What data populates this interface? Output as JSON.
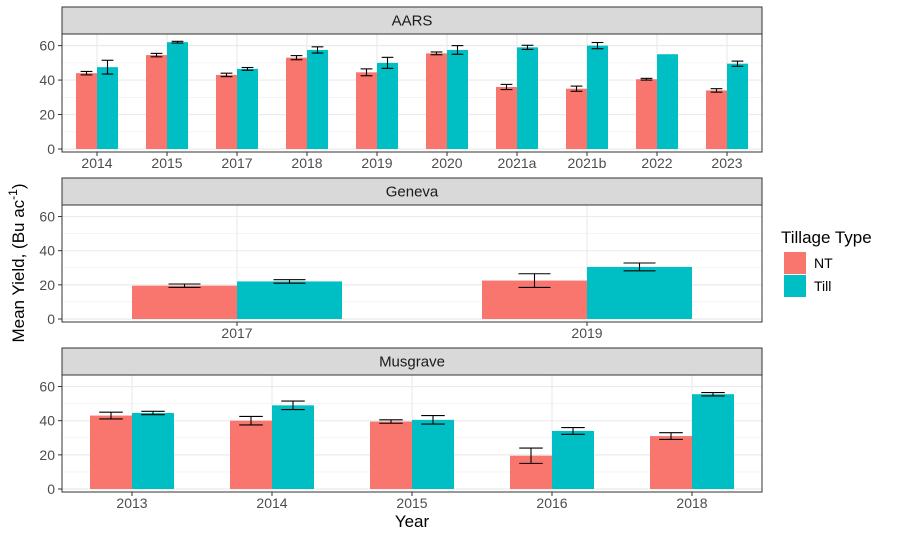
{
  "chart_data": {
    "type": "bar",
    "layout": "faceted-vertical",
    "xlabel": "Year",
    "ylabel": "Mean Yield, (Bu ac",
    "ylabel_superscript": "-1",
    "ylabel_suffix": ")",
    "ylim": [
      0,
      65
    ],
    "yticks": [
      0,
      20,
      40,
      60
    ],
    "legend": {
      "title": "Tillage Type",
      "position": "right",
      "items": [
        {
          "name": "NT",
          "color": "#F8766D"
        },
        {
          "name": "Till",
          "color": "#00BFC4"
        }
      ]
    },
    "series_colors": {
      "NT": "#F8766D",
      "Till": "#00BFC4"
    },
    "panels": [
      {
        "title": "AARS",
        "categories": [
          "2014",
          "2015",
          "2017",
          "2018",
          "2019",
          "2020",
          "2021a",
          "2021b",
          "2022",
          "2023"
        ],
        "series": [
          {
            "name": "NT",
            "values": [
              44,
              54.5,
              43,
              53,
              44.5,
              55.5,
              36,
              35,
              40.5,
              34
            ],
            "errors": [
              1,
              1,
              1,
              1.2,
              2,
              0.8,
              1.5,
              1.5,
              0.5,
              1
            ]
          },
          {
            "name": "Till",
            "values": [
              47.5,
              62,
              46.5,
              57.5,
              50,
              57.5,
              59,
              60,
              55,
              49.5
            ],
            "errors": [
              4,
              0.5,
              0.8,
              1.8,
              3.2,
              2.5,
              1.2,
              1.8,
              null,
              1.5
            ]
          }
        ]
      },
      {
        "title": "Geneva",
        "categories": [
          "2017",
          "2019"
        ],
        "series": [
          {
            "name": "NT",
            "values": [
              19.5,
              22.5
            ],
            "errors": [
              1,
              4
            ]
          },
          {
            "name": "Till",
            "values": [
              22,
              30.5
            ],
            "errors": [
              1,
              2.3
            ]
          }
        ]
      },
      {
        "title": "Musgrave",
        "categories": [
          "2013",
          "2014",
          "2015",
          "2016",
          "2018"
        ],
        "series": [
          {
            "name": "NT",
            "values": [
              43,
              40,
              39.5,
              19.5,
              31
            ],
            "errors": [
              2,
              2.5,
              1,
              4.5,
              2
            ]
          },
          {
            "name": "Till",
            "values": [
              44.5,
              49,
              40.5,
              34,
              55.5
            ],
            "errors": [
              1,
              2.5,
              2.5,
              2,
              1
            ]
          }
        ]
      }
    ]
  }
}
